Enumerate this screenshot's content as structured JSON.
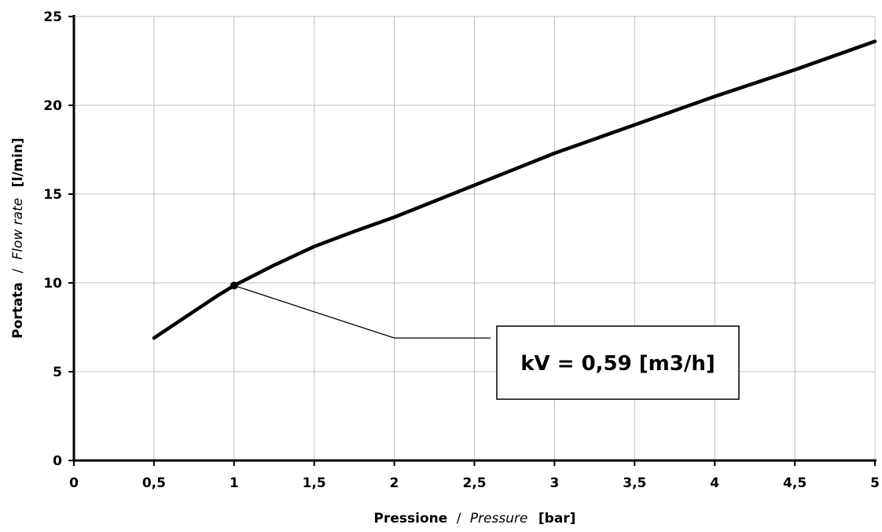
{
  "chart_data": {
    "type": "line",
    "x_axis": {
      "label_main": "Pressione",
      "label_sep": "/",
      "label_alt": "Pressure",
      "label_unit": "[bar]",
      "range": [
        0,
        5
      ],
      "ticks": [
        0,
        0.5,
        1,
        1.5,
        2,
        2.5,
        3,
        3.5,
        4,
        4.5,
        5
      ],
      "tick_labels": [
        "0",
        "0,5",
        "1",
        "1,5",
        "2",
        "2,5",
        "3",
        "3,5",
        "4",
        "4,5",
        "5"
      ]
    },
    "y_axis": {
      "label_main": "Portata",
      "label_sep": "/",
      "label_alt": "Flow rate",
      "label_unit": "[l/min]",
      "range": [
        0,
        25
      ],
      "ticks": [
        0,
        5,
        10,
        15,
        20,
        25
      ],
      "tick_labels": [
        "0",
        "5",
        "10",
        "15",
        "20",
        "25"
      ]
    },
    "grid": true,
    "series": [
      {
        "x": [
          0.5,
          0.6,
          0.7,
          0.8,
          0.9,
          1.0,
          1.25,
          1.5,
          1.75,
          2.0,
          2.5,
          3.0,
          3.5,
          4.0,
          4.5,
          5.0
        ],
        "y": [
          6.9,
          7.5,
          8.1,
          8.7,
          9.3,
          9.85,
          11.0,
          12.05,
          12.9,
          13.7,
          15.5,
          17.3,
          18.9,
          20.5,
          22.0,
          23.6
        ]
      }
    ],
    "marker": {
      "x": 1.0,
      "y": 9.85
    },
    "annotation": {
      "text": "kV = 0,59 [m3/h]",
      "leader": [
        [
          1.0,
          9.85
        ],
        [
          2.0,
          6.9
        ],
        [
          2.6,
          6.9
        ]
      ]
    },
    "colors": {
      "line": "#000000",
      "grid": "#bfbfbf",
      "axis": "#000000"
    }
  }
}
